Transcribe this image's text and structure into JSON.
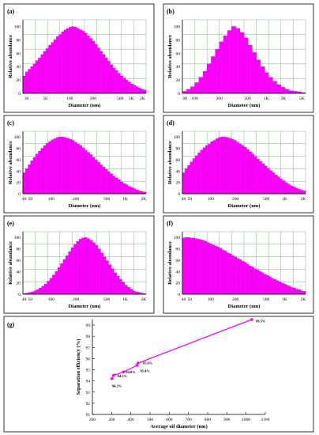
{
  "panels": [
    {
      "label": "(a)",
      "ylabel": "Relative abundance",
      "xlabel": "Diameter (nm)",
      "xticks": [
        "30",
        "50",
        "100",
        "200",
        "500",
        "1K",
        "2K"
      ],
      "yticks": [
        "0",
        "20",
        "40",
        "60",
        "80",
        "100"
      ]
    },
    {
      "label": "(b)",
      "ylabel": "Relative abundance",
      "xlabel": "Diameter (nm)",
      "xticks": [
        "90",
        "100",
        "200",
        "500",
        "1K",
        "2K",
        "5K"
      ],
      "yticks": [
        "0",
        "20",
        "40",
        "60",
        "80",
        "100"
      ]
    },
    {
      "label": "(c)",
      "ylabel": "Relative abundance",
      "xlabel": "Diameter (nm)",
      "xticks": [
        "40",
        "50",
        "100",
        "200",
        "500",
        "1K",
        "2K"
      ],
      "yticks": [
        "0",
        "20",
        "40",
        "60",
        "80",
        "100"
      ]
    },
    {
      "label": "(d)",
      "ylabel": "Relative abundance",
      "xlabel": "Diameter (nm)",
      "xticks": [
        "40",
        "50",
        "100",
        "200",
        "500",
        "1K",
        "2K"
      ],
      "yticks": [
        "0",
        "20",
        "40",
        "60",
        "80",
        "100"
      ]
    },
    {
      "label": "(e)",
      "ylabel": "Relative abundance",
      "xlabel": "Diameter (nm)",
      "xticks": [
        "40",
        "50",
        "100",
        "200",
        "500",
        "1K",
        "2K"
      ],
      "yticks": [
        "0",
        "20",
        "40",
        "60",
        "80",
        "100"
      ]
    },
    {
      "label": "(f)",
      "ylabel": "Relative abundance",
      "xlabel": "Diameter (nm)",
      "xticks": [
        "40",
        "50",
        "100",
        "200",
        "500",
        "1K",
        "2K"
      ],
      "yticks": [
        "0",
        "20",
        "40",
        "60",
        "80",
        "100"
      ]
    }
  ],
  "bottom_panel": {
    "label": "(g)",
    "xlabel": "Average oil diameter (nm)",
    "ylabel": "Separation efficiency (%)",
    "xticks": [
      "200",
      "300",
      "400",
      "500",
      "600",
      "700",
      "800",
      "900",
      "1000",
      "1100"
    ],
    "yticks": [
      "91",
      "92",
      "93",
      "94",
      "95",
      "96",
      "97",
      "98",
      "99"
    ]
  },
  "colors": {
    "bar": "#ff00ff",
    "bar_edge": "#c000c0",
    "grid": "#7ab87a",
    "line": "#ff00ff"
  },
  "chart_data": [
    {
      "type": "bar",
      "label": "(a)",
      "xlabel": "Diameter (nm)",
      "ylabel": "Relative abundance",
      "x_scale": "log",
      "xlim": [
        30,
        3500
      ],
      "ylim": [
        0,
        110
      ],
      "values": [
        26,
        32,
        36,
        40,
        44,
        49,
        53,
        58,
        63,
        67,
        72,
        76,
        80,
        85,
        88,
        92,
        95,
        97,
        99,
        100,
        99,
        97,
        95,
        93,
        90,
        86,
        82,
        78,
        73,
        68,
        63,
        58,
        53,
        48,
        43,
        38,
        34,
        30,
        26,
        23,
        20,
        17,
        14,
        12,
        10,
        8,
        6,
        5
      ]
    },
    {
      "type": "bar",
      "label": "(b)",
      "xlabel": "Diameter (nm)",
      "ylabel": "Relative abundance",
      "x_scale": "log",
      "xlim": [
        90,
        8000
      ],
      "ylim": [
        0,
        110
      ],
      "values": [
        3,
        6,
        10,
        16,
        24,
        33,
        44,
        55,
        66,
        77,
        86,
        94,
        100,
        97,
        91,
        83,
        72,
        61,
        50,
        40,
        31,
        24,
        18,
        13,
        9,
        6,
        4,
        3,
        2,
        1
      ]
    },
    {
      "type": "bar",
      "label": "(c)",
      "xlabel": "Diameter (nm)",
      "ylabel": "Relative abundance",
      "x_scale": "log",
      "xlim": [
        40,
        3500
      ],
      "ylim": [
        0,
        110
      ],
      "values": [
        37,
        44,
        51,
        58,
        64,
        70,
        75,
        80,
        85,
        89,
        92,
        95,
        97,
        99,
        100,
        100,
        99,
        98,
        96,
        94,
        91,
        88,
        85,
        81,
        77,
        73,
        69,
        64,
        60,
        56,
        51,
        47,
        43,
        39,
        35,
        31,
        28,
        25,
        21,
        18,
        16,
        13,
        11,
        9,
        7,
        5,
        4,
        3
      ]
    },
    {
      "type": "bar",
      "label": "(d)",
      "xlabel": "Diameter (nm)",
      "ylabel": "Relative abundance",
      "x_scale": "log",
      "xlim": [
        40,
        3500
      ],
      "ylim": [
        0,
        110
      ],
      "values": [
        37,
        44,
        50,
        56,
        62,
        67,
        72,
        77,
        81,
        85,
        88,
        92,
        94,
        97,
        99,
        100,
        100,
        99,
        98,
        96,
        94,
        91,
        88,
        85,
        82,
        78,
        74,
        70,
        66,
        61,
        57,
        53,
        49,
        45,
        41,
        37,
        33,
        30,
        26,
        23,
        20,
        17,
        14,
        12,
        10,
        8,
        6,
        5
      ]
    },
    {
      "type": "bar",
      "label": "(e)",
      "xlabel": "Diameter (nm)",
      "ylabel": "Relative abundance",
      "x_scale": "log",
      "xlim": [
        40,
        3500
      ],
      "ylim": [
        0,
        110
      ],
      "values": [
        1,
        2,
        3,
        4,
        6,
        8,
        11,
        14,
        18,
        23,
        28,
        34,
        40,
        47,
        54,
        61,
        68,
        75,
        82,
        88,
        93,
        97,
        99,
        100,
        98,
        95,
        91,
        86,
        80,
        73,
        66,
        59,
        52,
        45,
        38,
        32,
        26,
        21,
        16,
        12,
        9,
        6,
        4,
        3,
        2,
        1
      ]
    },
    {
      "type": "bar",
      "label": "(f)",
      "xlabel": "Diameter (nm)",
      "ylabel": "Relative abundance",
      "x_scale": "log",
      "xlim": [
        40,
        3500
      ],
      "ylim": [
        0,
        110
      ],
      "values": [
        99,
        100,
        100,
        99,
        99,
        98,
        97,
        96,
        95,
        93,
        91,
        89,
        87,
        85,
        83,
        81,
        78,
        76,
        73,
        71,
        68,
        66,
        63,
        61,
        58,
        56,
        53,
        50,
        48,
        45,
        43,
        40,
        38,
        35,
        33,
        31,
        28,
        26,
        24,
        22,
        20,
        18,
        16,
        14,
        12,
        11,
        9,
        8,
        6,
        5
      ]
    },
    {
      "type": "line",
      "label": "(g)",
      "xlabel": "Average oil diameter (nm)",
      "ylabel": "Separation efficiency (%)",
      "xlim": [
        200,
        1100
      ],
      "ylim": [
        91,
        99.5
      ],
      "points": [
        {
          "x": 302,
          "y": 94.2,
          "label": "94.2%"
        },
        {
          "x": 310,
          "y": 94.5,
          "label": "94.5%"
        },
        {
          "x": 362,
          "y": 94.8,
          "label": "94.8%"
        },
        {
          "x": 432,
          "y": 95.4,
          "label": "95.4%"
        },
        {
          "x": 438,
          "y": 95.6,
          "label": "95.6%"
        },
        {
          "x": 1030,
          "y": 99.5,
          "label": "99.5%"
        }
      ]
    }
  ]
}
